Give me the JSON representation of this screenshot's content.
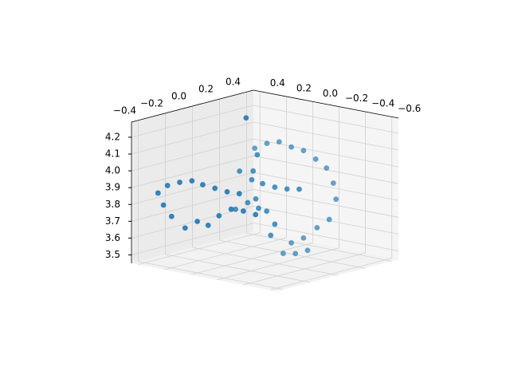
{
  "chart_data": {
    "type": "scatter3d",
    "color": "#1f77b4",
    "grid": true,
    "xlim": [
      -0.45,
      0.45
    ],
    "xticks": [
      {
        "value": -0.4,
        "label": "−0.4"
      },
      {
        "value": -0.2,
        "label": "−0.2"
      },
      {
        "value": 0,
        "label": "0.0"
      },
      0.2,
      0.4
    ],
    "ylim": [
      -0.65,
      0.45
    ],
    "yticks": [
      0.4,
      0.2,
      {
        "value": 0,
        "label": "0.0"
      },
      {
        "value": -0.2,
        "label": "−0.2"
      },
      {
        "value": -0.4,
        "label": "−0.4"
      },
      {
        "value": -0.6,
        "label": "−0.6"
      }
    ],
    "zlim": [
      3.45,
      4.29
    ],
    "zticks": [
      3.5,
      3.6,
      3.7,
      3.8,
      3.9,
      {
        "value": 4.0,
        "label": "4.0"
      },
      4.1,
      4.2
    ],
    "x": [
      -0.4,
      -0.33,
      -0.24,
      -0.15,
      -0.07,
      0.02,
      0.11,
      0.2,
      -0.36,
      -0.3,
      -0.2,
      -0.11,
      -0.03,
      0.05,
      0.14,
      0.23,
      0.32,
      -0.27,
      -0.18,
      -0.09,
      0.0,
      0.09,
      0.18,
      0.26,
      0.31,
      0.33,
      0.28,
      0.19,
      0.09,
      0.0,
      -0.06,
      0.03,
      0.12,
      -0.09,
      0.0,
      0.08,
      0.17,
      0.26,
      0.35,
      0.03,
      0.11,
      0.17,
      0.14,
      0.05,
      -0.03,
      0.04,
      0.01,
      -0.12,
      0.25
    ],
    "y": [
      0.3,
      0.3,
      0.3,
      0.3,
      0.3,
      0.3,
      0.3,
      0.3,
      0.3,
      0.3,
      0.3,
      0.3,
      0.3,
      0.3,
      0.3,
      0.3,
      0.3,
      -0.3,
      -0.3,
      -0.3,
      -0.3,
      -0.3,
      -0.3,
      -0.3,
      -0.3,
      -0.3,
      -0.3,
      -0.3,
      -0.3,
      -0.3,
      -0.3,
      -0.3,
      -0.3,
      0.0,
      0.0,
      0.0,
      0.0,
      0.0,
      0.0,
      0.0,
      0.0,
      0.0,
      0.0,
      0.0,
      0.0,
      0.0,
      0.0,
      0.0,
      0.3
    ],
    "z": [
      3.88,
      3.91,
      3.91,
      3.9,
      3.86,
      3.82,
      3.78,
      3.75,
      3.8,
      3.72,
      3.63,
      3.65,
      3.61,
      3.65,
      3.67,
      3.64,
      3.6,
      4.21,
      4.22,
      4.21,
      4.16,
      4.12,
      4.05,
      3.98,
      3.88,
      3.78,
      3.67,
      3.64,
      3.6,
      3.59,
      3.54,
      3.52,
      3.52,
      3.99,
      3.92,
      3.88,
      3.84,
      3.81,
      3.79,
      3.8,
      3.71,
      3.62,
      3.56,
      3.74,
      3.79,
      4.06,
      3.97,
      3.77,
      4.19
    ]
  }
}
